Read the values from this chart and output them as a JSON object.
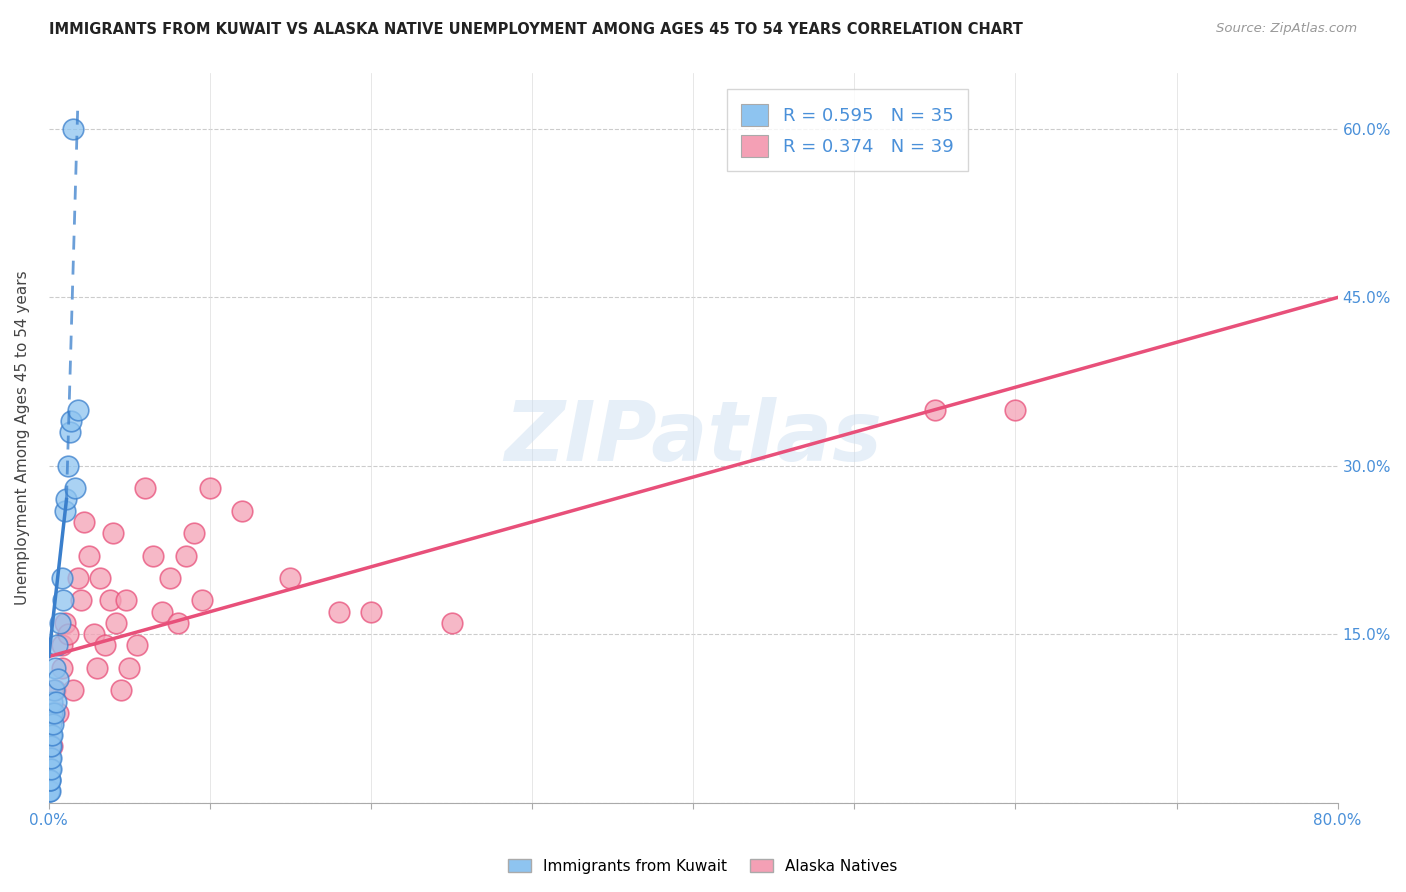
{
  "title": "IMMIGRANTS FROM KUWAIT VS ALASKA NATIVE UNEMPLOYMENT AMONG AGES 45 TO 54 YEARS CORRELATION CHART",
  "source": "Source: ZipAtlas.com",
  "ylabel": "Unemployment Among Ages 45 to 54 years",
  "xlim": [
    0,
    0.8
  ],
  "ylim": [
    0,
    0.65
  ],
  "xticks": [
    0.0,
    0.1,
    0.2,
    0.3,
    0.4,
    0.5,
    0.6,
    0.7,
    0.8
  ],
  "xticklabels": [
    "0.0%",
    "",
    "",
    "",
    "",
    "",
    "",
    "",
    "80.0%"
  ],
  "ytick_positions": [
    0.0,
    0.15,
    0.3,
    0.45,
    0.6
  ],
  "ytick_labels_right": [
    "",
    "15.0%",
    "30.0%",
    "45.0%",
    "60.0%"
  ],
  "watermark": "ZIPatlas",
  "color_blue": "#8EC4F0",
  "color_pink": "#F4A0B5",
  "trendline_blue": "#3A7FCC",
  "trendline_pink": "#E8507A",
  "kuwait_x": [
    0.0002,
    0.0003,
    0.0004,
    0.0005,
    0.0006,
    0.0007,
    0.0008,
    0.0009,
    0.001,
    0.0012,
    0.0013,
    0.0014,
    0.0015,
    0.0016,
    0.0018,
    0.002,
    0.0022,
    0.0025,
    0.003,
    0.0035,
    0.004,
    0.0045,
    0.005,
    0.006,
    0.007,
    0.008,
    0.009,
    0.01,
    0.011,
    0.012,
    0.013,
    0.014,
    0.015,
    0.016,
    0.018
  ],
  "kuwait_y": [
    0.01,
    0.01,
    0.02,
    0.01,
    0.02,
    0.03,
    0.02,
    0.04,
    0.05,
    0.03,
    0.06,
    0.04,
    0.07,
    0.05,
    0.08,
    0.06,
    0.09,
    0.07,
    0.1,
    0.08,
    0.12,
    0.09,
    0.14,
    0.11,
    0.16,
    0.2,
    0.18,
    0.26,
    0.27,
    0.3,
    0.33,
    0.34,
    0.6,
    0.28,
    0.35
  ],
  "alaska_x": [
    0.002,
    0.004,
    0.006,
    0.008,
    0.008,
    0.01,
    0.012,
    0.015,
    0.018,
    0.02,
    0.022,
    0.025,
    0.028,
    0.03,
    0.032,
    0.035,
    0.038,
    0.04,
    0.042,
    0.045,
    0.048,
    0.05,
    0.055,
    0.06,
    0.065,
    0.07,
    0.075,
    0.08,
    0.085,
    0.09,
    0.095,
    0.1,
    0.12,
    0.15,
    0.18,
    0.2,
    0.25,
    0.55,
    0.6
  ],
  "alaska_y": [
    0.05,
    0.1,
    0.08,
    0.12,
    0.14,
    0.16,
    0.15,
    0.1,
    0.2,
    0.18,
    0.25,
    0.22,
    0.15,
    0.12,
    0.2,
    0.14,
    0.18,
    0.24,
    0.16,
    0.1,
    0.18,
    0.12,
    0.14,
    0.28,
    0.22,
    0.17,
    0.2,
    0.16,
    0.22,
    0.24,
    0.18,
    0.28,
    0.26,
    0.2,
    0.17,
    0.17,
    0.16,
    0.35,
    0.35
  ],
  "alaska_trendline_x0": 0.0,
  "alaska_trendline_x1": 0.8,
  "alaska_trendline_y0": 0.13,
  "alaska_trendline_y1": 0.45,
  "kuwait_trendline_solid_x0": 0.0,
  "kuwait_trendline_solid_y0": 0.13,
  "kuwait_trendline_solid_x1": 0.011,
  "kuwait_trendline_solid_y1": 0.27,
  "kuwait_trendline_dash_x0": 0.011,
  "kuwait_trendline_dash_y0": 0.27,
  "kuwait_trendline_dash_x1": 0.018,
  "kuwait_trendline_dash_y1": 0.62
}
